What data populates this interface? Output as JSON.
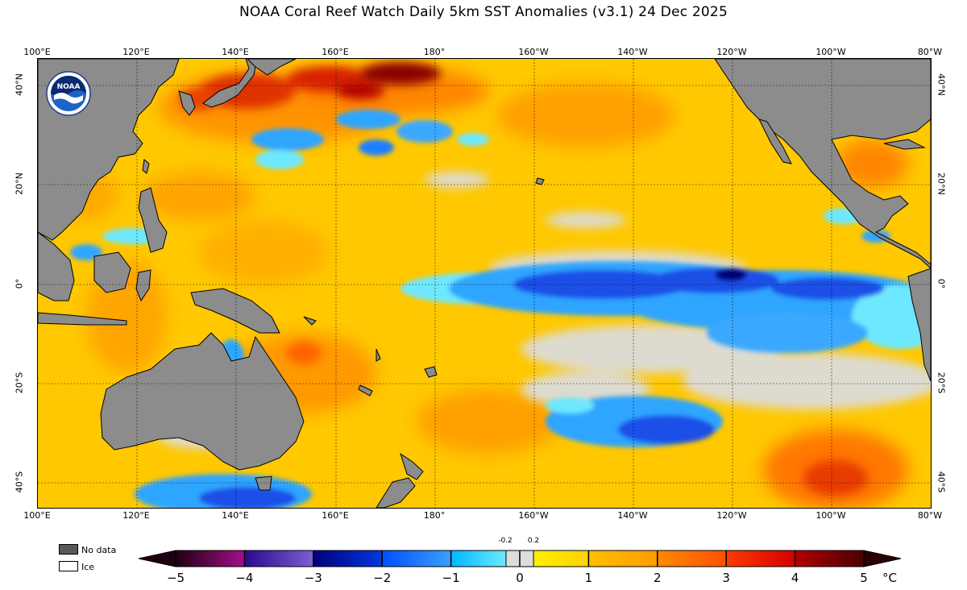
{
  "title": "NOAA Coral Reef Watch Daily 5km SST Anomalies  (v3.1)   24 Dec 2025",
  "logo": {
    "text": "NOAA",
    "icon": "noaa-logo-icon"
  },
  "axes": {
    "longitude_ticks": [
      "100°E",
      "120°E",
      "140°E",
      "160°E",
      "180°",
      "160°W",
      "140°W",
      "120°W",
      "100°W",
      "80°W"
    ],
    "latitude_ticks_left": [
      "40°N",
      "20°N",
      "0°",
      "20°S",
      "40°S"
    ],
    "latitude_ticks_right": [
      "40°N",
      "20°N",
      "0°",
      "20°S",
      "40°S"
    ]
  },
  "legend": {
    "no_data_label": "No data",
    "no_data_color": "#595959",
    "ice_label": "Ice",
    "ice_color": "#ffffff"
  },
  "colorbar": {
    "unit": "°C",
    "ticks": [
      "−5",
      "−4",
      "−3",
      "−2",
      "−1",
      "0",
      "1",
      "2",
      "3",
      "4",
      "5"
    ],
    "small_ticks": [
      "-0.2",
      "0.2"
    ],
    "range": [
      -5,
      5
    ],
    "segments": [
      {
        "from": -5,
        "to": -4,
        "colors": [
          "#1f0010",
          "#a0108c"
        ]
      },
      {
        "from": -4,
        "to": -3,
        "colors": [
          "#2a0a8f",
          "#7a60d0"
        ]
      },
      {
        "from": -3,
        "to": -2,
        "colors": [
          "#00007a",
          "#0038e0"
        ]
      },
      {
        "from": -2,
        "to": -1,
        "colors": [
          "#0050ff",
          "#3aa0ff"
        ]
      },
      {
        "from": -1,
        "to": -0.2,
        "colors": [
          "#00b8ff",
          "#6ee8ff"
        ]
      },
      {
        "from": -0.2,
        "to": 0.2,
        "colors": [
          "#dcdcdc",
          "#dcdcdc"
        ]
      },
      {
        "from": 0.2,
        "to": 1,
        "colors": [
          "#fff000",
          "#ffd000"
        ]
      },
      {
        "from": 1,
        "to": 2,
        "colors": [
          "#ffc000",
          "#ff9a00"
        ]
      },
      {
        "from": 2,
        "to": 3,
        "colors": [
          "#ff8a00",
          "#ff5000"
        ]
      },
      {
        "from": 3,
        "to": 4,
        "colors": [
          "#ff3a00",
          "#d00000"
        ]
      },
      {
        "from": 4,
        "to": 5,
        "colors": [
          "#b00000",
          "#4a0000"
        ]
      }
    ]
  },
  "colors": {
    "land": "#8c8c8c",
    "ocean_base": "#ffc400",
    "cold_strong": "#1f4fe8",
    "cold_mid": "#2fa5ff",
    "cold_light": "#6ee8ff",
    "neutral": "#dcdcdc",
    "warm": "#ff9a00",
    "hot": "#e23a00",
    "very_hot": "#8a0000"
  }
}
